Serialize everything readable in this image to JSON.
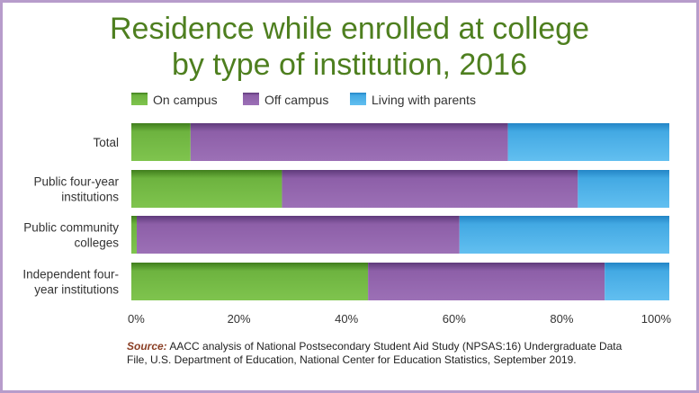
{
  "chart_data": {
    "type": "bar",
    "orientation": "horizontal",
    "stacked": true,
    "title_lines": [
      "Residence while enrolled at college",
      "by type of institution, 2016"
    ],
    "categories": [
      [
        "Total"
      ],
      [
        "Public four-year",
        "institutions"
      ],
      [
        "Public community",
        "colleges"
      ],
      [
        "Independent four-",
        "year institutions"
      ]
    ],
    "series": [
      {
        "name": "On campus",
        "color": "#6db33f",
        "values": [
          11,
          28,
          1,
          44
        ]
      },
      {
        "name": "Off campus",
        "color": "#8d5fa8",
        "values": [
          59,
          55,
          60,
          44
        ]
      },
      {
        "name": "Living with parents",
        "color": "#43a9e3",
        "values": [
          30,
          17,
          39,
          12
        ]
      }
    ],
    "xlim": [
      0,
      100
    ],
    "xticks": [
      "0%",
      "20%",
      "40%",
      "60%",
      "80%",
      "100%"
    ],
    "legend_position": "top-left",
    "grid": false
  },
  "source": {
    "label": "Source:",
    "text": " AACC analysis of National Postsecondary Student Aid Study (NPSAS:16) Undergraduate Data File, U.S. Department of Education, National Center for Education Statistics, September 2019."
  }
}
